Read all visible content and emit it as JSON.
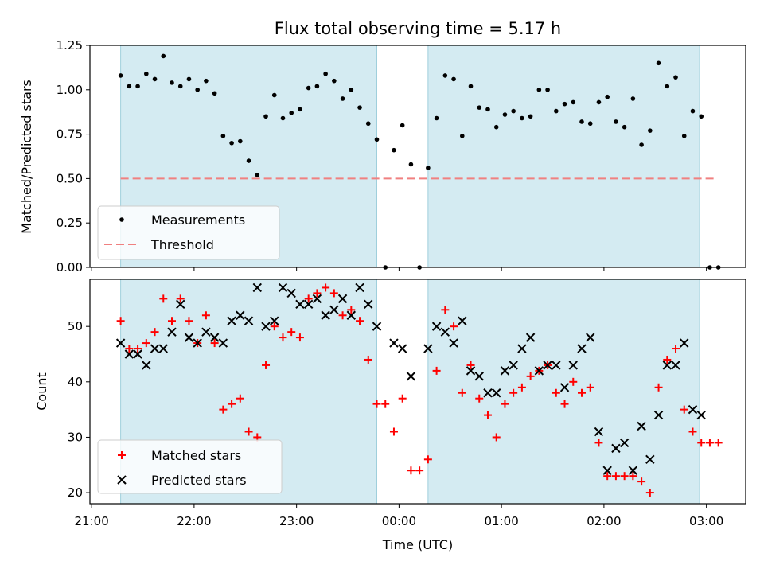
{
  "chart_data": [
    {
      "type": "scatter",
      "title": "Flux total observing time = 5.17 h",
      "xlabel": "",
      "ylabel": "Matched/Predicted stars",
      "xlim": [
        "20:59",
        "03:23"
      ],
      "ylim": [
        0,
        1.25
      ],
      "yticks": [
        "0.00",
        "0.25",
        "0.50",
        "0.75",
        "1.00",
        "1.25"
      ],
      "shaded_intervals": [
        [
          "21:17",
          "23:47"
        ],
        [
          "00:17",
          "02:56"
        ]
      ],
      "shade_color": "#add8e6",
      "threshold": {
        "value": 0.5,
        "x_start": "21:17",
        "x_end": "03:05",
        "color": "#f08080",
        "style": "dashed"
      },
      "legend": {
        "placement": "lower-left",
        "entries": [
          "Measurements",
          "Threshold"
        ]
      },
      "series": [
        {
          "name": "Measurements",
          "color": "#000000",
          "marker": "dot",
          "x": [
            "21:17",
            "21:22",
            "21:27",
            "21:32",
            "21:37",
            "21:42",
            "21:47",
            "21:52",
            "21:57",
            "22:02",
            "22:07",
            "22:12",
            "22:17",
            "22:22",
            "22:27",
            "22:32",
            "22:37",
            "22:42",
            "22:47",
            "22:52",
            "22:57",
            "23:02",
            "23:07",
            "23:12",
            "23:17",
            "23:22",
            "23:27",
            "23:32",
            "23:37",
            "23:42",
            "23:47",
            "23:52",
            "23:57",
            "00:02",
            "00:07",
            "00:12",
            "00:17",
            "00:22",
            "00:27",
            "00:32",
            "00:37",
            "00:42",
            "00:47",
            "00:52",
            "00:57",
            "01:02",
            "01:07",
            "01:12",
            "01:17",
            "01:22",
            "01:27",
            "01:32",
            "01:37",
            "01:42",
            "01:47",
            "01:52",
            "01:57",
            "02:02",
            "02:07",
            "02:12",
            "02:17",
            "02:22",
            "02:27",
            "02:32",
            "02:37",
            "02:42",
            "02:47",
            "02:52",
            "02:57",
            "03:02",
            "03:07"
          ],
          "y": [
            1.08,
            1.02,
            1.02,
            1.09,
            1.06,
            1.19,
            1.04,
            1.02,
            1.06,
            1.0,
            1.05,
            0.98,
            0.74,
            0.7,
            0.71,
            0.6,
            0.52,
            0.85,
            0.97,
            0.84,
            0.87,
            0.89,
            1.01,
            1.02,
            1.09,
            1.05,
            0.95,
            1.0,
            0.9,
            0.81,
            0.72,
            0.0,
            0.66,
            0.8,
            0.58,
            0.0,
            0.56,
            0.84,
            1.08,
            1.06,
            0.74,
            1.02,
            0.9,
            0.89,
            0.79,
            0.86,
            0.88,
            0.84,
            0.85,
            1.0,
            1.0,
            0.88,
            0.92,
            0.93,
            0.82,
            0.81,
            0.93,
            0.96,
            0.82,
            0.79,
            0.95,
            0.69,
            0.77,
            1.15,
            1.02,
            1.07,
            0.74,
            0.88,
            0.85,
            0.0,
            0.0
          ]
        }
      ]
    },
    {
      "type": "scatter",
      "title": "",
      "xlabel": "Time (UTC)",
      "ylabel": "Count",
      "xlim": [
        "20:59",
        "03:23"
      ],
      "ylim": [
        18,
        58.5
      ],
      "xticks": [
        "21:00",
        "22:00",
        "23:00",
        "00:00",
        "01:00",
        "02:00",
        "03:00"
      ],
      "yticks": [
        "20",
        "30",
        "40",
        "50"
      ],
      "shaded_intervals": [
        [
          "21:17",
          "23:47"
        ],
        [
          "00:17",
          "02:56"
        ]
      ],
      "shade_color": "#add8e6",
      "legend": {
        "placement": "lower-left",
        "entries": [
          "Matched stars",
          "Predicted stars"
        ]
      },
      "series": [
        {
          "name": "Matched stars",
          "color": "#ff0000",
          "marker": "plus",
          "x": [
            "21:17",
            "21:22",
            "21:27",
            "21:32",
            "21:37",
            "21:42",
            "21:47",
            "21:52",
            "21:57",
            "22:02",
            "22:07",
            "22:12",
            "22:17",
            "22:22",
            "22:27",
            "22:32",
            "22:37",
            "22:42",
            "22:47",
            "22:52",
            "22:57",
            "23:02",
            "23:07",
            "23:12",
            "23:17",
            "23:22",
            "23:27",
            "23:32",
            "23:37",
            "23:42",
            "23:47",
            "23:52",
            "23:57",
            "00:02",
            "00:07",
            "00:12",
            "00:17",
            "00:22",
            "00:27",
            "00:32",
            "00:37",
            "00:42",
            "00:47",
            "00:52",
            "00:57",
            "01:02",
            "01:07",
            "01:12",
            "01:17",
            "01:22",
            "01:27",
            "01:32",
            "01:37",
            "01:42",
            "01:47",
            "01:52",
            "01:57",
            "02:02",
            "02:07",
            "02:12",
            "02:17",
            "02:22",
            "02:27",
            "02:32",
            "02:37",
            "02:42",
            "02:47",
            "02:52",
            "02:57",
            "03:02",
            "03:07"
          ],
          "y": [
            51,
            46,
            46,
            47,
            49,
            55,
            51,
            55,
            51,
            47,
            52,
            47,
            35,
            36,
            37,
            31,
            30,
            43,
            50,
            48,
            49,
            48,
            55,
            56,
            57,
            56,
            52,
            53,
            51,
            44,
            36,
            36,
            31,
            37,
            24,
            24,
            26,
            42,
            53,
            50,
            38,
            43,
            37,
            34,
            30,
            36,
            38,
            39,
            41,
            42,
            43,
            38,
            36,
            40,
            38,
            39,
            29,
            23,
            23,
            23,
            23,
            22,
            20,
            39,
            44,
            46,
            35,
            31,
            29,
            29,
            29
          ]
        },
        {
          "name": "Predicted stars",
          "color": "#000000",
          "marker": "x",
          "x": [
            "21:17",
            "21:22",
            "21:27",
            "21:32",
            "21:37",
            "21:42",
            "21:47",
            "21:52",
            "21:57",
            "22:02",
            "22:07",
            "22:12",
            "22:17",
            "22:22",
            "22:27",
            "22:32",
            "22:37",
            "22:42",
            "22:47",
            "22:52",
            "22:57",
            "23:02",
            "23:07",
            "23:12",
            "23:17",
            "23:22",
            "23:27",
            "23:32",
            "23:37",
            "23:42",
            "23:47",
            "23:57",
            "00:02",
            "00:07",
            "00:17",
            "00:22",
            "00:27",
            "00:32",
            "00:37",
            "00:42",
            "00:47",
            "00:52",
            "00:57",
            "01:02",
            "01:07",
            "01:12",
            "01:17",
            "01:22",
            "01:27",
            "01:32",
            "01:37",
            "01:42",
            "01:47",
            "01:52",
            "01:57",
            "02:02",
            "02:07",
            "02:12",
            "02:17",
            "02:22",
            "02:27",
            "02:32",
            "02:37",
            "02:42",
            "02:47",
            "02:52",
            "02:57"
          ],
          "y": [
            47,
            45,
            45,
            43,
            46,
            46,
            49,
            54,
            48,
            47,
            49,
            48,
            47,
            51,
            52,
            51,
            57,
            50,
            51,
            57,
            56,
            54,
            54,
            55,
            52,
            53,
            55,
            52,
            57,
            54,
            50,
            47,
            46,
            41,
            46,
            50,
            49,
            47,
            51,
            42,
            41,
            38,
            38,
            42,
            43,
            46,
            48,
            42,
            43,
            43,
            39,
            43,
            46,
            48,
            31,
            24,
            28,
            29,
            24,
            32,
            26,
            34,
            43,
            43,
            47,
            35,
            34
          ]
        }
      ]
    }
  ]
}
